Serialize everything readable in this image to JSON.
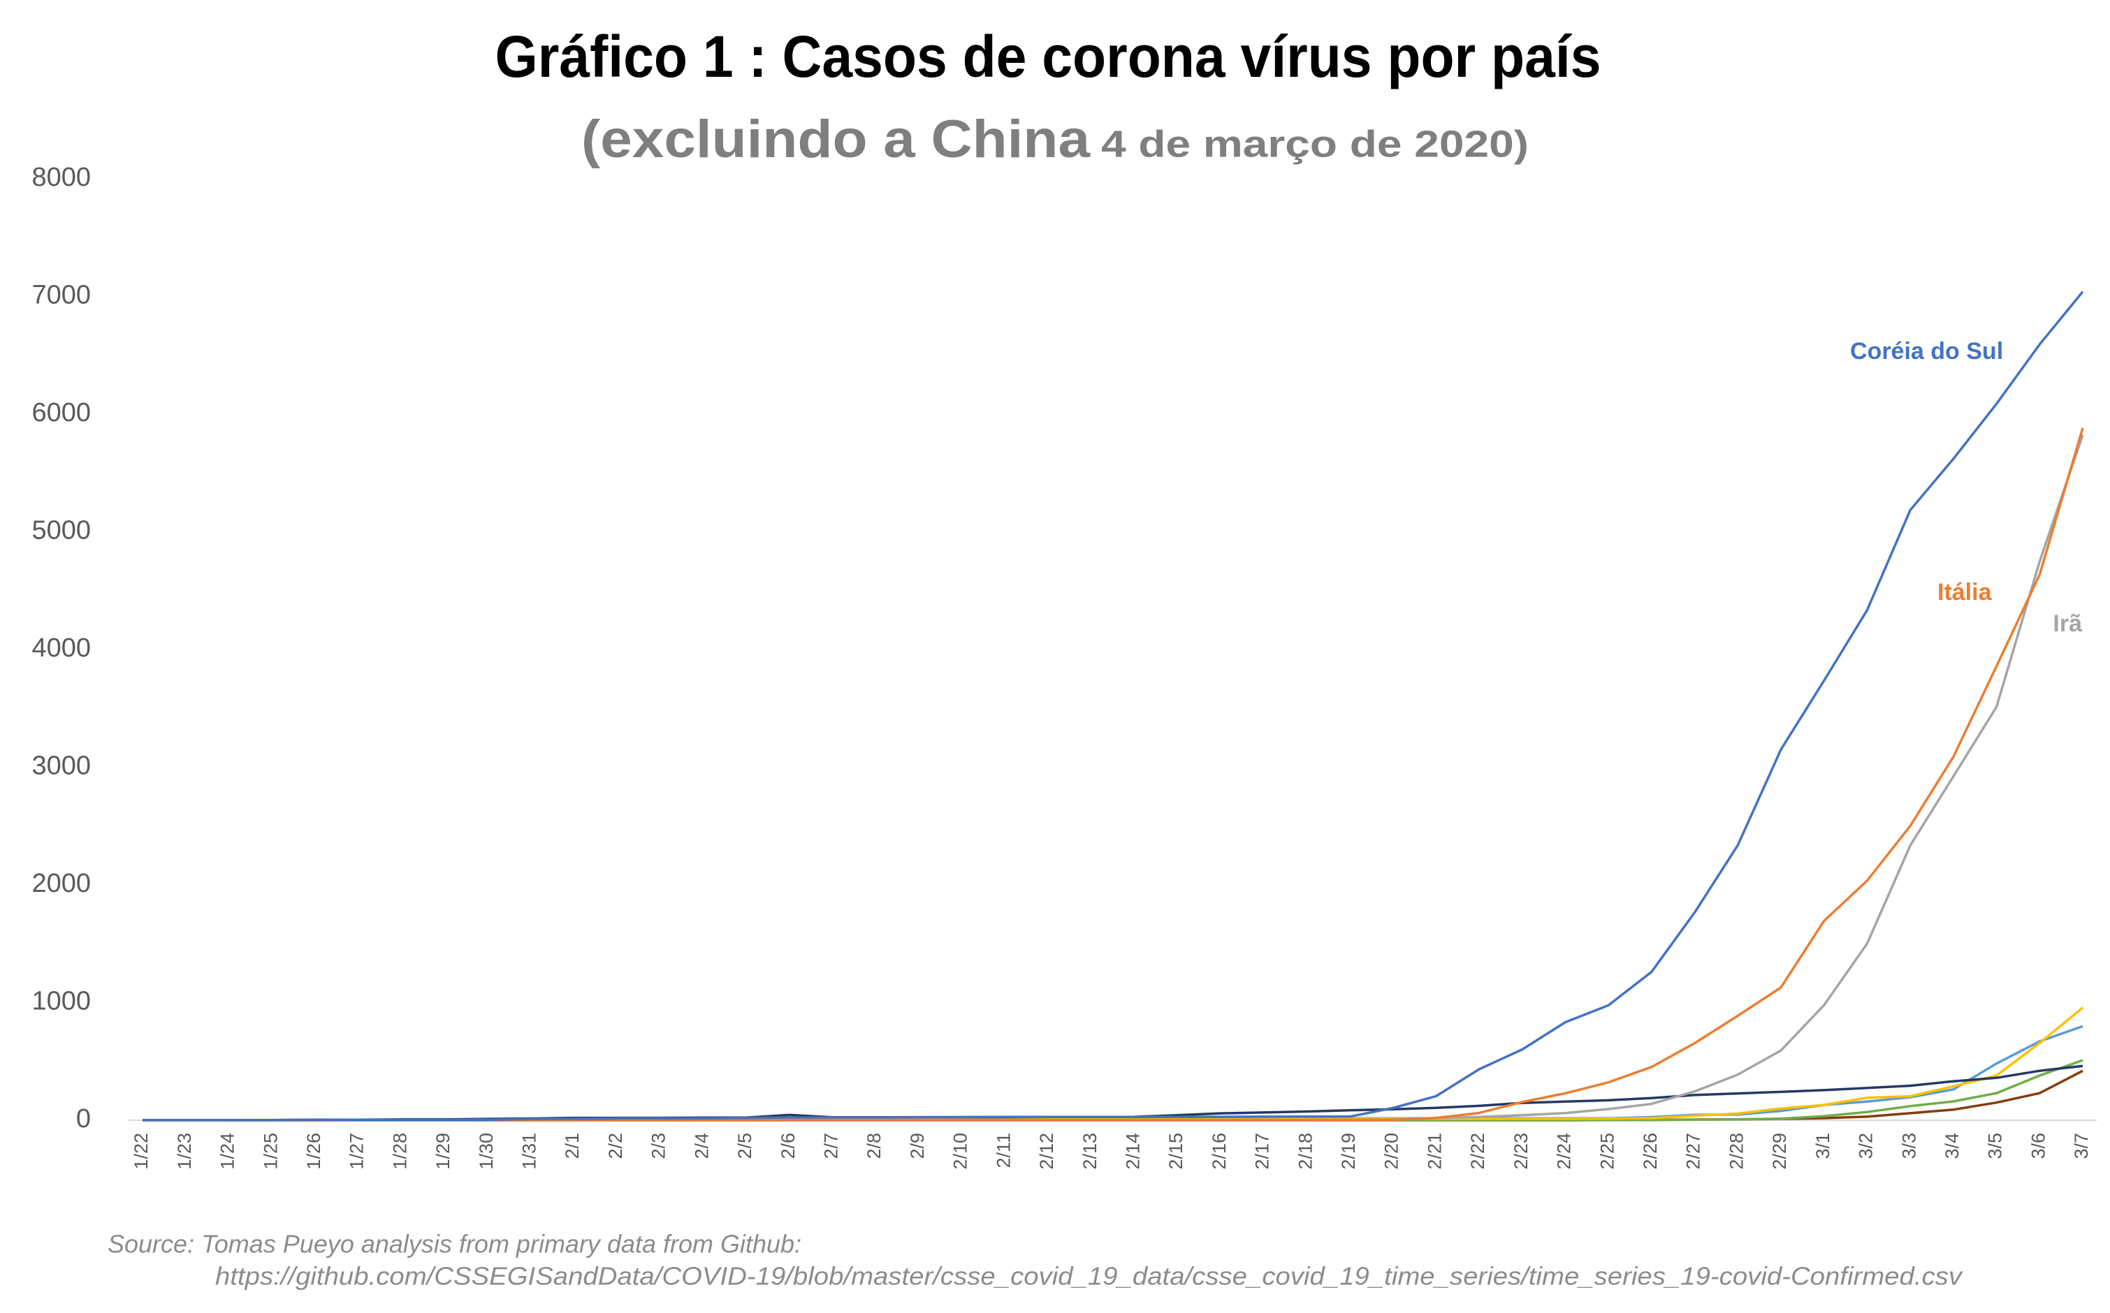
{
  "chart_data": {
    "type": "line",
    "title": "Gráfico 1 : Casos de corona vírus por país",
    "subtitle": "(excluindo a China",
    "subtitle_date": "4 de março de 2020)",
    "source": [
      "Source: Tomas Pueyo analysis from primary data from Github:",
      "https://github.com/CSSEGISandData/COVID-19/blob/master/csse_covid_19_data/csse_covid_19_time_series/time_series_19-covid-Confirmed.csv"
    ],
    "categories": [
      "1/22",
      "1/23",
      "1/24",
      "1/25",
      "1/26",
      "1/27",
      "1/28",
      "1/29",
      "1/30",
      "1/31",
      "2/1",
      "2/2",
      "2/3",
      "2/4",
      "2/5",
      "2/6",
      "2/7",
      "2/8",
      "2/9",
      "2/10",
      "2/11",
      "2/12",
      "2/13",
      "2/14",
      "2/15",
      "2/16",
      "2/17",
      "2/18",
      "2/19",
      "2/20",
      "2/21",
      "2/22",
      "2/23",
      "2/24",
      "2/25",
      "2/26",
      "2/27",
      "2/28",
      "2/29",
      "3/1",
      "3/2",
      "3/3",
      "3/4",
      "3/5",
      "3/6",
      "3/7"
    ],
    "ylim": [
      0,
      8000
    ],
    "yticks": [
      0,
      1000,
      2000,
      3000,
      4000,
      5000,
      6000,
      7000,
      8000
    ],
    "grid": false,
    "series": [
      {
        "name": "Coréia do Sul",
        "color": "#4472c4",
        "values": [
          1,
          1,
          2,
          2,
          3,
          4,
          4,
          4,
          4,
          11,
          12,
          15,
          15,
          16,
          19,
          23,
          24,
          24,
          25,
          27,
          28,
          28,
          28,
          28,
          28,
          29,
          30,
          31,
          31,
          104,
          204,
          433,
          602,
          833,
          977,
          1261,
          1766,
          2337,
          3150,
          3736,
          4335,
          5186,
          5621,
          6088,
          6593,
          7041
        ]
      },
      {
        "name": "Itália",
        "color": "#ed7d31",
        "values": [
          0,
          0,
          0,
          0,
          0,
          0,
          0,
          0,
          0,
          2,
          2,
          2,
          2,
          2,
          2,
          3,
          3,
          3,
          3,
          3,
          3,
          3,
          3,
          3,
          3,
          3,
          3,
          3,
          3,
          3,
          20,
          62,
          155,
          229,
          322,
          453,
          655,
          888,
          1128,
          1694,
          2036,
          2502,
          3089,
          3858,
          4636,
          5883
        ]
      },
      {
        "name": "Irã",
        "color": "#a5a5a5",
        "values": [
          0,
          0,
          0,
          0,
          0,
          0,
          0,
          0,
          0,
          0,
          0,
          0,
          0,
          0,
          0,
          0,
          0,
          0,
          0,
          0,
          0,
          0,
          0,
          0,
          0,
          0,
          0,
          0,
          2,
          5,
          18,
          28,
          43,
          61,
          95,
          139,
          245,
          388,
          593,
          978,
          1501,
          2336,
          2922,
          3513,
          4747,
          5823
        ]
      },
      {
        "color": "#243a63",
        "values": [
          2,
          1,
          2,
          2,
          4,
          4,
          7,
          7,
          11,
          15,
          20,
          20,
          20,
          22,
          22,
          45,
          25,
          25,
          26,
          26,
          26,
          28,
          28,
          29,
          43,
          59,
          66,
          74,
          84,
          94,
          105,
          122,
          147,
          159,
          170,
          189,
          214,
          228,
          241,
          256,
          274,
          293,
          331,
          360,
          420,
          461
        ]
      },
      {
        "color": "#ffc000",
        "values": [
          0,
          0,
          2,
          3,
          3,
          3,
          4,
          5,
          5,
          5,
          6,
          6,
          6,
          6,
          6,
          6,
          6,
          11,
          11,
          11,
          11,
          11,
          11,
          11,
          12,
          12,
          12,
          12,
          12,
          12,
          12,
          12,
          12,
          12,
          14,
          18,
          38,
          57,
          100,
          130,
          191,
          204,
          288,
          380,
          656,
          957
        ]
      },
      {
        "color": "#5b9bd5",
        "values": [
          0,
          0,
          0,
          0,
          0,
          0,
          1,
          4,
          4,
          5,
          7,
          8,
          10,
          12,
          12,
          12,
          13,
          13,
          14,
          14,
          16,
          16,
          16,
          16,
          16,
          16,
          16,
          16,
          16,
          16,
          16,
          16,
          16,
          16,
          17,
          27,
          46,
          48,
          79,
          130,
          159,
          196,
          262,
          482,
          670,
          799
        ]
      },
      {
        "color": "#70ad47",
        "values": [
          0,
          0,
          0,
          0,
          0,
          0,
          0,
          0,
          0,
          0,
          0,
          0,
          0,
          0,
          0,
          0,
          0,
          0,
          0,
          0,
          0,
          0,
          0,
          0,
          0,
          0,
          0,
          0,
          0,
          0,
          0,
          0,
          0,
          0,
          1,
          2,
          4,
          8,
          13,
          35,
          70,
          120,
          160,
          230,
          380,
          510
        ]
      },
      {
        "color": "#843c0c",
        "values": [
          0,
          0,
          0,
          0,
          0,
          0,
          0,
          0,
          0,
          0,
          0,
          0,
          0,
          0,
          0,
          0,
          0,
          0,
          0,
          0,
          0,
          0,
          0,
          0,
          0,
          0,
          0,
          0,
          0,
          0,
          0,
          0,
          0,
          0,
          2,
          3,
          6,
          8,
          12,
          18,
          30,
          60,
          90,
          150,
          230,
          420
        ]
      }
    ]
  }
}
